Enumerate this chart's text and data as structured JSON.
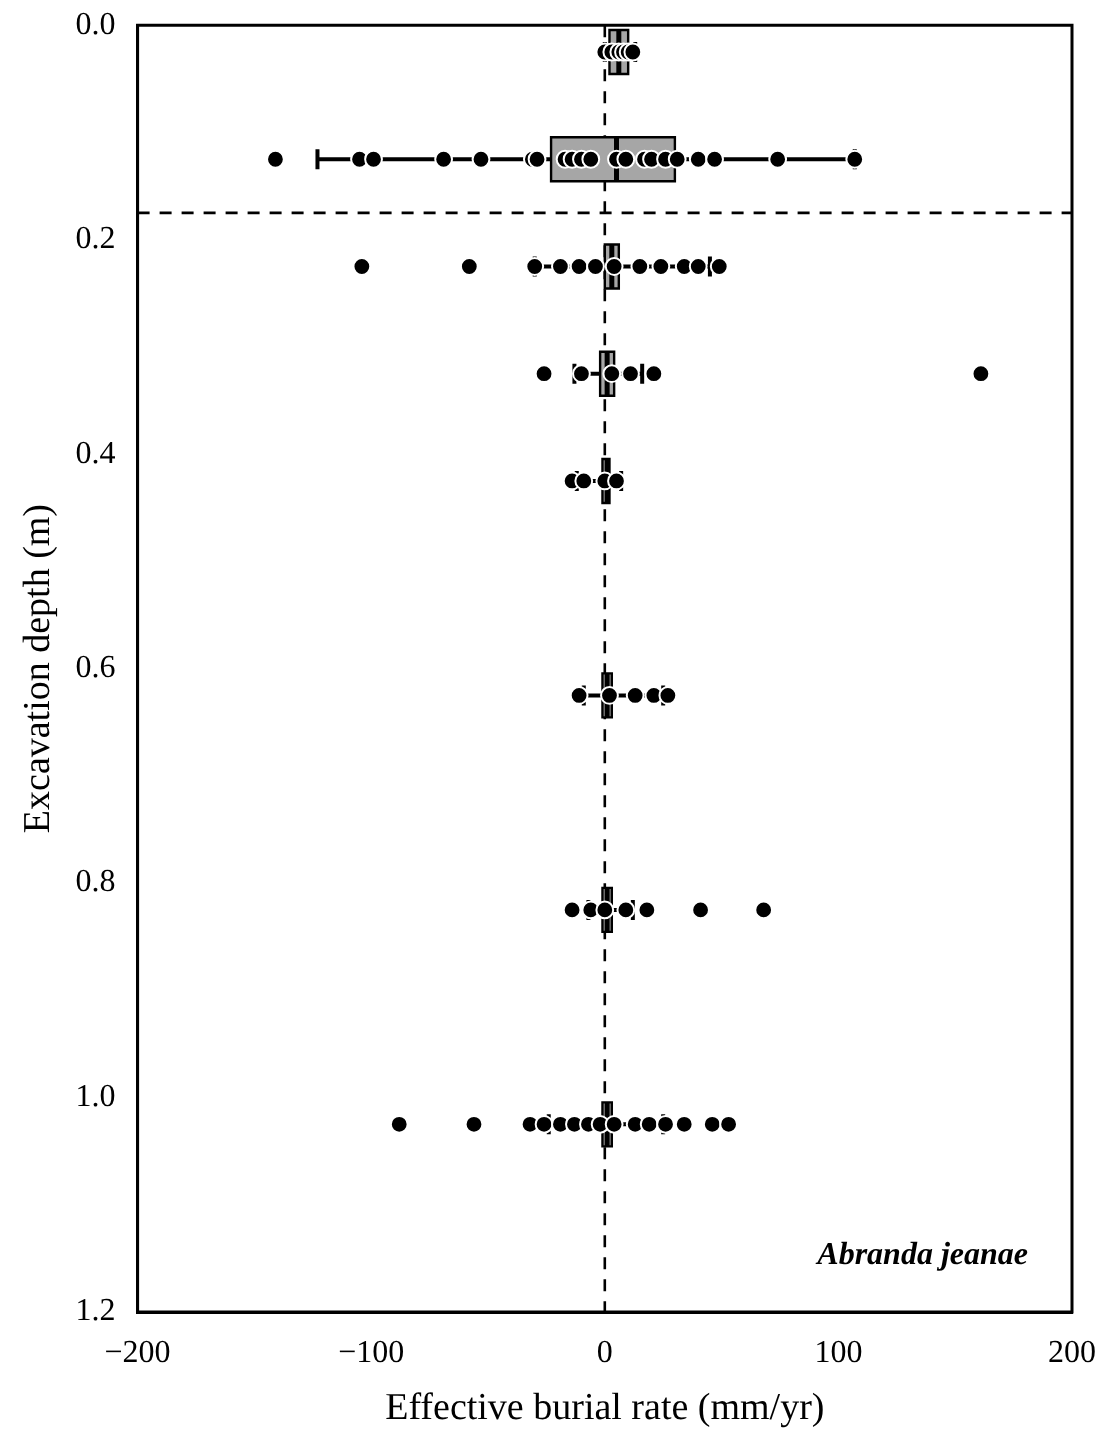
{
  "chart_data": {
    "type": "box",
    "orientation": "horizontal",
    "xlabel": "Effective burial rate (mm/yr)",
    "ylabel": "Excavation depth (m)",
    "xlim": [
      -200,
      200
    ],
    "xticks": [
      {
        "value": -200,
        "label": "−200"
      },
      {
        "value": -100,
        "label": "−100"
      },
      0,
      100,
      200
    ],
    "ylim": [
      1.2,
      0
    ],
    "yticks": [
      {
        "value": 0,
        "label": "0.0"
      },
      0.2,
      0.4,
      0.6,
      0.8,
      {
        "value": 1,
        "label": "1.0"
      },
      1.2
    ],
    "grid": false,
    "legend": false,
    "marker": "circle",
    "ref_lines": [
      {
        "axis": "x",
        "value": 0,
        "line_style": "dashed",
        "color": "#000000"
      },
      {
        "axis": "y",
        "value": 0.175,
        "line_style": "dashed",
        "color": "#000000"
      }
    ],
    "annotations": [
      "Abranda jeanae"
    ],
    "series": [
      {
        "color": "#a6a6a6",
        "x": [
          0.025,
          0.125,
          0.225,
          0.325,
          0.425,
          0.625,
          0.825,
          1.025
        ],
        "boxes": [
          {
            "low": 0,
            "q1": 2,
            "median": 6,
            "q3": 10,
            "high": 13
          },
          {
            "low": -123,
            "q1": -23,
            "median": 5,
            "q3": 30,
            "high": 107
          },
          {
            "low": -30,
            "q1": 0,
            "median": 3,
            "q3": 6,
            "high": 45
          },
          {
            "low": -13,
            "q1": -2,
            "median": 1,
            "q3": 4,
            "high": 16
          },
          {
            "low": -12,
            "q1": -1,
            "median": 1,
            "q3": 2,
            "high": 7
          },
          {
            "low": -9,
            "q1": -1,
            "median": 1,
            "q3": 3,
            "high": 25
          },
          {
            "low": -7,
            "q1": -1,
            "median": 1,
            "q3": 3,
            "high": 12
          },
          {
            "low": -24,
            "q1": -1,
            "median": 1,
            "q3": 3,
            "high": 25
          }
        ]
      },
      {
        "type": "scatter",
        "color": "#000000",
        "values": [
          0,
          3,
          6,
          8,
          10,
          12,
          -141,
          -105,
          -99,
          -69,
          -53,
          -31,
          -29,
          -17,
          -14,
          -10,
          -6,
          5,
          9,
          17,
          20,
          26,
          31,
          40,
          47,
          74,
          107,
          -104,
          -58,
          -30,
          -19,
          -11,
          -4,
          4,
          15,
          24,
          34,
          40,
          49,
          -26,
          -10,
          3,
          11,
          21,
          161,
          -14,
          -9,
          0,
          5,
          -11,
          2,
          13,
          21,
          27,
          -14,
          -6,
          0,
          9,
          18,
          41,
          68,
          -88,
          -56,
          -32,
          -26,
          -19,
          -13,
          -7,
          -2,
          4,
          13,
          19,
          26,
          34,
          46,
          53
        ],
        "x": [
          0.025,
          0.025,
          0.025,
          0.025,
          0.025,
          0.025,
          0.125,
          0.125,
          0.125,
          0.125,
          0.125,
          0.125,
          0.125,
          0.125,
          0.125,
          0.125,
          0.125,
          0.125,
          0.125,
          0.125,
          0.125,
          0.125,
          0.125,
          0.125,
          0.125,
          0.125,
          0.125,
          0.225,
          0.225,
          0.225,
          0.225,
          0.225,
          0.225,
          0.225,
          0.225,
          0.225,
          0.225,
          0.225,
          0.225,
          0.325,
          0.325,
          0.325,
          0.325,
          0.325,
          0.325,
          0.425,
          0.425,
          0.425,
          0.425,
          0.625,
          0.625,
          0.625,
          0.625,
          0.625,
          0.825,
          0.825,
          0.825,
          0.825,
          0.825,
          0.825,
          0.825,
          1.025,
          1.025,
          1.025,
          1.025,
          1.025,
          1.025,
          1.025,
          1.025,
          1.025,
          1.025,
          1.025,
          1.025,
          1.025,
          1.025,
          1.025
        ]
      }
    ]
  }
}
